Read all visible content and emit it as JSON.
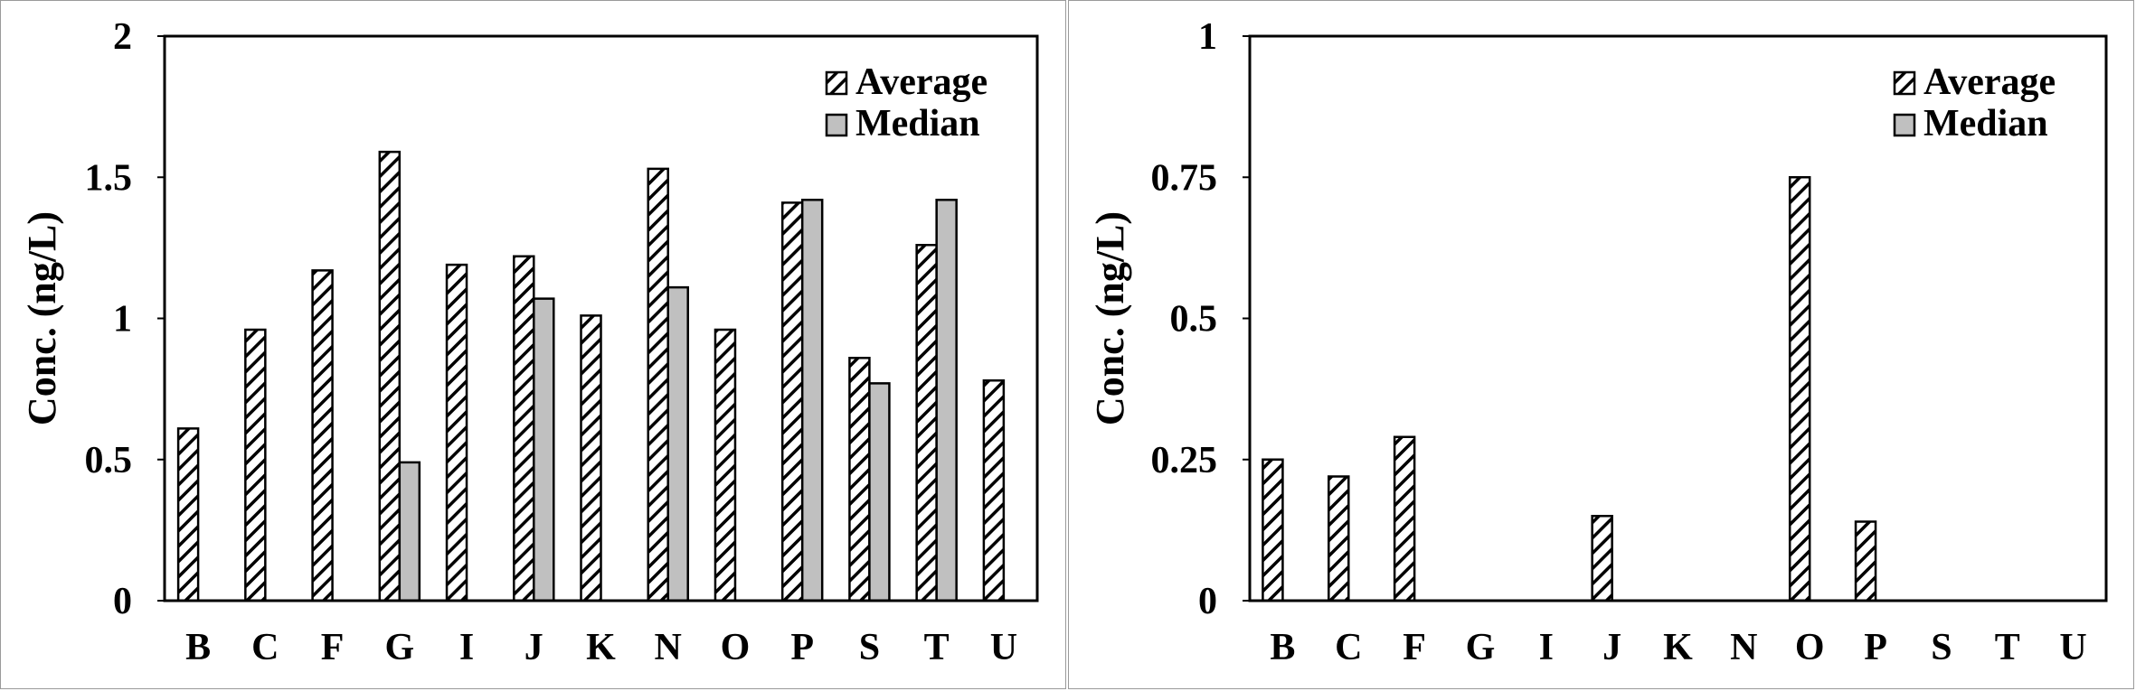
{
  "chart_data": [
    {
      "type": "bar",
      "title": "",
      "xlabel": "",
      "ylabel": "Conc. (ng/L)",
      "ylim": [
        0,
        2
      ],
      "yticks": [
        "0",
        "0.5",
        "1",
        "1.5",
        "2"
      ],
      "ytick_values": [
        0,
        0.5,
        1,
        1.5,
        2
      ],
      "legend_placement": "top-right",
      "grid": false,
      "categories": [
        "B",
        "C",
        "F",
        "G",
        "I",
        "J",
        "K",
        "N",
        "O",
        "P",
        "S",
        "T",
        "U"
      ],
      "series": [
        {
          "name": "Average",
          "pattern": "hatched",
          "values": [
            0.61,
            0.96,
            1.17,
            1.59,
            1.19,
            1.22,
            1.01,
            1.53,
            0.96,
            1.41,
            0.86,
            1.26,
            0.78
          ]
        },
        {
          "name": "Median",
          "pattern": "solid",
          "color": "#c0c0c0",
          "values": [
            null,
            null,
            null,
            0.49,
            null,
            1.07,
            null,
            1.11,
            null,
            1.42,
            0.77,
            1.42,
            null
          ]
        }
      ]
    },
    {
      "type": "bar",
      "title": "",
      "xlabel": "",
      "ylabel": "Conc. (ng/L)",
      "ylim": [
        0,
        1
      ],
      "yticks": [
        "0",
        "0.25",
        "0.5",
        "0.75",
        "1"
      ],
      "ytick_values": [
        0,
        0.25,
        0.5,
        0.75,
        1
      ],
      "legend_placement": "top-right",
      "grid": false,
      "categories": [
        "B",
        "C",
        "F",
        "G",
        "I",
        "J",
        "K",
        "N",
        "O",
        "P",
        "S",
        "T",
        "U"
      ],
      "series": [
        {
          "name": "Average",
          "pattern": "hatched",
          "values": [
            0.25,
            0.22,
            0.29,
            null,
            null,
            0.15,
            null,
            null,
            0.75,
            0.14,
            null,
            null,
            null
          ]
        },
        {
          "name": "Median",
          "pattern": "solid",
          "color": "#c0c0c0",
          "values": [
            null,
            null,
            null,
            null,
            null,
            null,
            null,
            null,
            null,
            null,
            null,
            null,
            null
          ]
        }
      ]
    }
  ]
}
